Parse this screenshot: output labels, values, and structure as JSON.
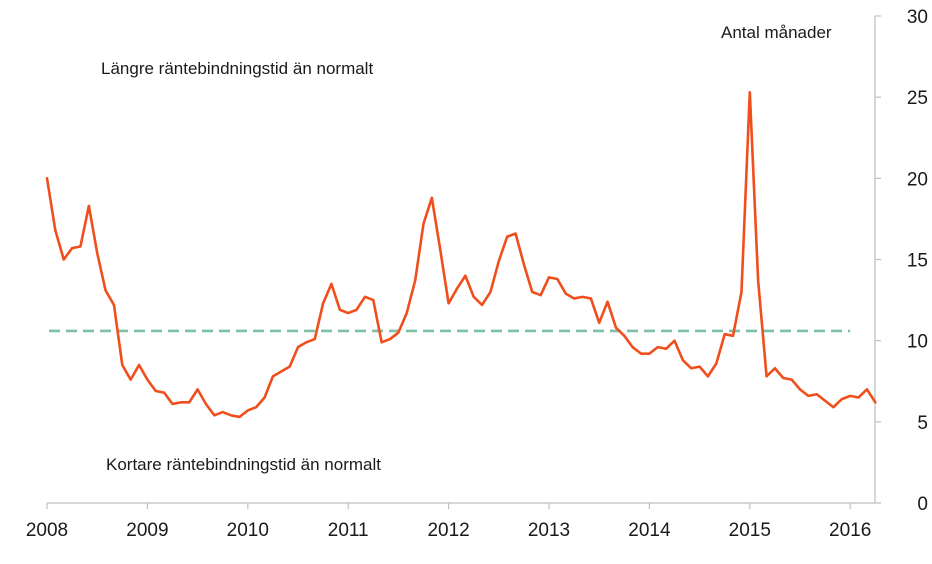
{
  "chart_data": {
    "type": "line",
    "title": "",
    "xlabel": "",
    "ylabel": "Antal månader",
    "xlim": [
      2008,
      2016.25
    ],
    "ylim": [
      0,
      30
    ],
    "x_ticks": [
      "2008",
      "2009",
      "2010",
      "2011",
      "2012",
      "2013",
      "2014",
      "2015",
      "2016"
    ],
    "y_ticks": [
      "0",
      "5",
      "10",
      "15",
      "20",
      "25",
      "30"
    ],
    "y_axis_side": "right",
    "grid": false,
    "legend": "none",
    "annotations": {
      "top": "Längre räntebindningstid än normalt",
      "bottom": "Kortare räntebindningstid än normalt"
    },
    "series": [
      {
        "color": "#f04e1c",
        "x": [
          2008.0,
          2008.083,
          2008.167,
          2008.25,
          2008.333,
          2008.417,
          2008.5,
          2008.583,
          2008.667,
          2008.75,
          2008.833,
          2008.917,
          2009.0,
          2009.083,
          2009.167,
          2009.25,
          2009.333,
          2009.417,
          2009.5,
          2009.583,
          2009.667,
          2009.75,
          2009.833,
          2009.917,
          2010.0,
          2010.083,
          2010.167,
          2010.25,
          2010.333,
          2010.417,
          2010.5,
          2010.583,
          2010.667,
          2010.75,
          2010.833,
          2010.917,
          2011.0,
          2011.083,
          2011.167,
          2011.25,
          2011.333,
          2011.417,
          2011.5,
          2011.583,
          2011.667,
          2011.75,
          2011.833,
          2011.917,
          2012.0,
          2012.083,
          2012.167,
          2012.25,
          2012.333,
          2012.417,
          2012.5,
          2012.583,
          2012.667,
          2012.75,
          2012.833,
          2012.917,
          2013.0,
          2013.083,
          2013.167,
          2013.25,
          2013.333,
          2013.417,
          2013.5,
          2013.583,
          2013.667,
          2013.75,
          2013.833,
          2013.917,
          2014.0,
          2014.083,
          2014.167,
          2014.25,
          2014.333,
          2014.417,
          2014.5,
          2014.583,
          2014.667,
          2014.75,
          2014.833,
          2014.917,
          2015.0,
          2015.083,
          2015.167,
          2015.25,
          2015.333,
          2015.417,
          2015.5,
          2015.583,
          2015.667,
          2015.75,
          2015.833,
          2015.917,
          2016.0,
          2016.083,
          2016.167,
          2016.25
        ],
        "values": [
          20.0,
          16.8,
          15.0,
          15.7,
          15.8,
          18.3,
          15.4,
          13.1,
          12.2,
          8.5,
          7.6,
          8.5,
          7.6,
          6.9,
          6.8,
          6.1,
          6.2,
          6.2,
          7.0,
          6.1,
          5.4,
          5.6,
          5.4,
          5.3,
          5.7,
          5.9,
          6.5,
          7.8,
          8.1,
          8.4,
          9.6,
          9.9,
          10.1,
          12.3,
          13.5,
          11.9,
          11.7,
          11.9,
          12.7,
          12.5,
          9.9,
          10.1,
          10.5,
          11.7,
          13.7,
          17.2,
          18.8,
          15.6,
          12.3,
          13.2,
          14.0,
          12.7,
          12.2,
          13.0,
          14.9,
          16.4,
          16.6,
          14.7,
          13.0,
          12.8,
          13.9,
          13.8,
          12.9,
          12.6,
          12.7,
          12.6,
          11.1,
          12.4,
          10.8,
          10.3,
          9.6,
          9.2,
          9.2,
          9.6,
          9.5,
          10.0,
          8.8,
          8.3,
          8.4,
          7.8,
          8.6,
          10.4,
          10.3,
          13.0,
          25.3,
          13.7,
          7.8,
          8.3,
          7.7,
          7.6,
          7.0,
          6.6,
          6.7,
          6.3,
          5.9,
          6.4,
          6.6,
          6.5,
          7.0,
          6.2
        ]
      }
    ],
    "reference_line": {
      "value": 10.6,
      "x_range": [
        2008.0,
        2016.0
      ],
      "color": "#7fbfa6",
      "style": "dashed"
    }
  }
}
